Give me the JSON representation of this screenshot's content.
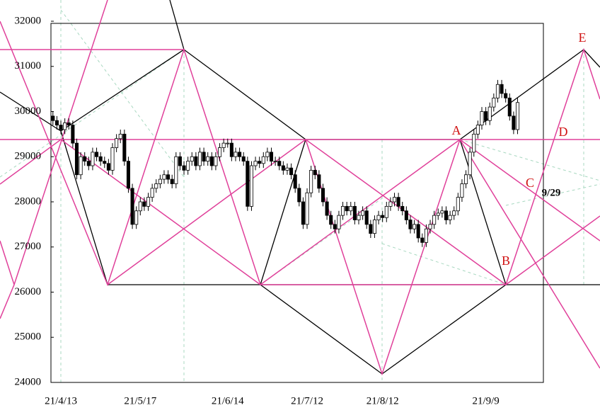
{
  "chart_data": {
    "type": "candlestick",
    "categories": [
      null,
      null,
      "21/4/13",
      null,
      null,
      null,
      null,
      null,
      null,
      null,
      null,
      null,
      null,
      null,
      null,
      null,
      null,
      null,
      null,
      null,
      null,
      null,
      "21/5/17",
      null,
      null,
      null,
      null,
      null,
      null,
      null,
      null,
      null,
      null,
      null,
      null,
      null,
      null,
      null,
      null,
      null,
      null,
      null,
      null,
      null,
      "21/6/14",
      null,
      null,
      null,
      null,
      null,
      null,
      null,
      null,
      null,
      null,
      null,
      null,
      null,
      null,
      null,
      null,
      null,
      null,
      null,
      "21/7/12",
      null,
      null,
      null,
      null,
      null,
      null,
      null,
      null,
      null,
      null,
      null,
      null,
      null,
      null,
      null,
      null,
      null,
      null,
      "21/8/12",
      null,
      null,
      null,
      null,
      null,
      null,
      null,
      null,
      null,
      null,
      null,
      null,
      null,
      null,
      null,
      null,
      null,
      null,
      null,
      null,
      null,
      null,
      null,
      null,
      null,
      "21/9/9",
      null,
      null,
      null,
      null,
      null,
      null,
      null,
      null,
      null,
      null,
      null,
      null,
      null,
      null
    ],
    "open": [
      29900,
      29800,
      29700,
      29600,
      29750,
      29700,
      29300,
      28600,
      29000,
      28900,
      28800,
      29100,
      29000,
      28900,
      28850,
      28700,
      29200,
      29400,
      29500,
      28900,
      28300,
      27500,
      27800,
      28000,
      27900,
      28100,
      28300,
      28400,
      28500,
      28600,
      28500,
      28400,
      29000,
      28800,
      28700,
      28900,
      29000,
      28800,
      29100,
      28900,
      29000,
      28800,
      29000,
      29200,
      29300,
      29300,
      29000,
      29100,
      29000,
      28900,
      27900,
      28800,
      28900,
      28850,
      29000,
      29100,
      28900,
      28900,
      28800,
      28700,
      28750,
      28600,
      28300,
      28000,
      27500,
      28200,
      28700,
      28600,
      28300,
      28000,
      27700,
      27500,
      27400,
      27700,
      27900,
      27800,
      27900,
      27600,
      27700,
      27800,
      27500,
      27300,
      27600,
      27700,
      27650,
      27900,
      28000,
      28100,
      27900,
      27800,
      27600,
      27400,
      27500,
      27200,
      27100,
      27400,
      27500,
      27700,
      27750,
      27800,
      27600,
      27700,
      27800,
      28100,
      28400,
      28600,
      29100,
      29500,
      29700,
      30000,
      29800,
      30100,
      30300,
      30600,
      30400,
      30300,
      29900,
      29600,
      null,
      null,
      null,
      null,
      null,
      null
    ],
    "high": [
      30000,
      29900,
      29800,
      29850,
      29850,
      29800,
      29400,
      29100,
      29100,
      29000,
      29200,
      29200,
      29100,
      29000,
      28950,
      29300,
      29500,
      29600,
      29600,
      29000,
      28400,
      27900,
      28100,
      28100,
      28200,
      28400,
      28500,
      28600,
      28700,
      28700,
      28600,
      29100,
      29100,
      28900,
      29000,
      29100,
      29100,
      29200,
      29200,
      29100,
      29100,
      29100,
      29300,
      29400,
      29400,
      29400,
      29200,
      29200,
      29100,
      29000,
      28900,
      29000,
      29000,
      29100,
      29200,
      29200,
      29000,
      29000,
      28900,
      28850,
      28850,
      28700,
      28400,
      28100,
      28300,
      28800,
      28800,
      28700,
      28400,
      28100,
      27800,
      27600,
      27800,
      28000,
      28000,
      28000,
      28000,
      27800,
      27900,
      27900,
      27600,
      27700,
      27800,
      27800,
      28000,
      28100,
      28200,
      28200,
      28000,
      27900,
      27700,
      27600,
      27600,
      27300,
      27500,
      27600,
      27800,
      27850,
      27900,
      27900,
      27800,
      27900,
      28200,
      28500,
      28700,
      29200,
      29600,
      29800,
      30100,
      30100,
      30200,
      30400,
      30700,
      30700,
      30500,
      30400,
      30000,
      30300,
      null,
      null,
      null,
      null,
      null,
      null
    ],
    "low": [
      29700,
      29600,
      29500,
      29500,
      29600,
      29200,
      28500,
      28500,
      28800,
      28700,
      28700,
      28900,
      28800,
      28750,
      28600,
      28600,
      29100,
      29300,
      28800,
      28200,
      27400,
      27400,
      27700,
      27800,
      27800,
      28000,
      28200,
      28300,
      28400,
      28400,
      28300,
      28300,
      28700,
      28600,
      28600,
      28800,
      28700,
      28700,
      28800,
      28800,
      28700,
      28700,
      28900,
      29100,
      29200,
      28900,
      28900,
      28900,
      28800,
      27800,
      27800,
      28700,
      28750,
      28750,
      28900,
      28800,
      28800,
      28700,
      28600,
      28600,
      28500,
      28200,
      27900,
      27400,
      27400,
      28100,
      28500,
      28200,
      27900,
      27600,
      27400,
      27300,
      27300,
      27600,
      27700,
      27700,
      27500,
      27500,
      27600,
      27400,
      27200,
      27200,
      27500,
      27550,
      27550,
      27800,
      27900,
      27800,
      27700,
      27500,
      27300,
      27300,
      27100,
      27000,
      27000,
      27300,
      27400,
      27600,
      27650,
      27500,
      27500,
      27600,
      27700,
      28000,
      28300,
      28500,
      29000,
      29400,
      29600,
      29700,
      29700,
      30000,
      30200,
      30300,
      30200,
      29800,
      29500,
      29500,
      null,
      null,
      null,
      null,
      null,
      null
    ],
    "close": [
      29800,
      29700,
      29600,
      29750,
      29700,
      29300,
      28600,
      29000,
      28900,
      28800,
      29100,
      29000,
      28900,
      28850,
      28700,
      29200,
      29400,
      29500,
      28900,
      28300,
      27500,
      27800,
      28000,
      27900,
      28100,
      28300,
      28400,
      28500,
      28600,
      28500,
      28400,
      29000,
      28800,
      28700,
      28900,
      29000,
      28800,
      29100,
      28900,
      29000,
      28800,
      29000,
      29200,
      29300,
      29300,
      29000,
      29100,
      29000,
      28900,
      27900,
      28800,
      28900,
      28850,
      29000,
      29100,
      28900,
      28900,
      28800,
      28700,
      28750,
      28600,
      28300,
      28000,
      27500,
      28200,
      28700,
      28600,
      28300,
      28000,
      27700,
      27500,
      27400,
      27700,
      27900,
      27800,
      27900,
      27600,
      27700,
      27800,
      27500,
      27300,
      27600,
      27700,
      27650,
      27900,
      28000,
      28100,
      27900,
      27800,
      27600,
      27400,
      27500,
      27200,
      27100,
      27400,
      27500,
      27700,
      27750,
      27800,
      27600,
      27700,
      27800,
      28100,
      28400,
      28600,
      29100,
      29500,
      29700,
      30000,
      29800,
      30100,
      30300,
      30600,
      30400,
      30300,
      29900,
      29600,
      30200,
      null,
      null,
      null,
      null,
      null,
      null
    ],
    "up_color": "#ffffff",
    "down_color": "#000000",
    "ylim": [
      24000,
      32000
    ],
    "yticks": [
      24000,
      25000,
      26000,
      27000,
      28000,
      29000,
      30000,
      31000,
      32000
    ],
    "annotations": [
      "A",
      "B",
      "C",
      "D",
      "E",
      "9/29"
    ]
  }
}
